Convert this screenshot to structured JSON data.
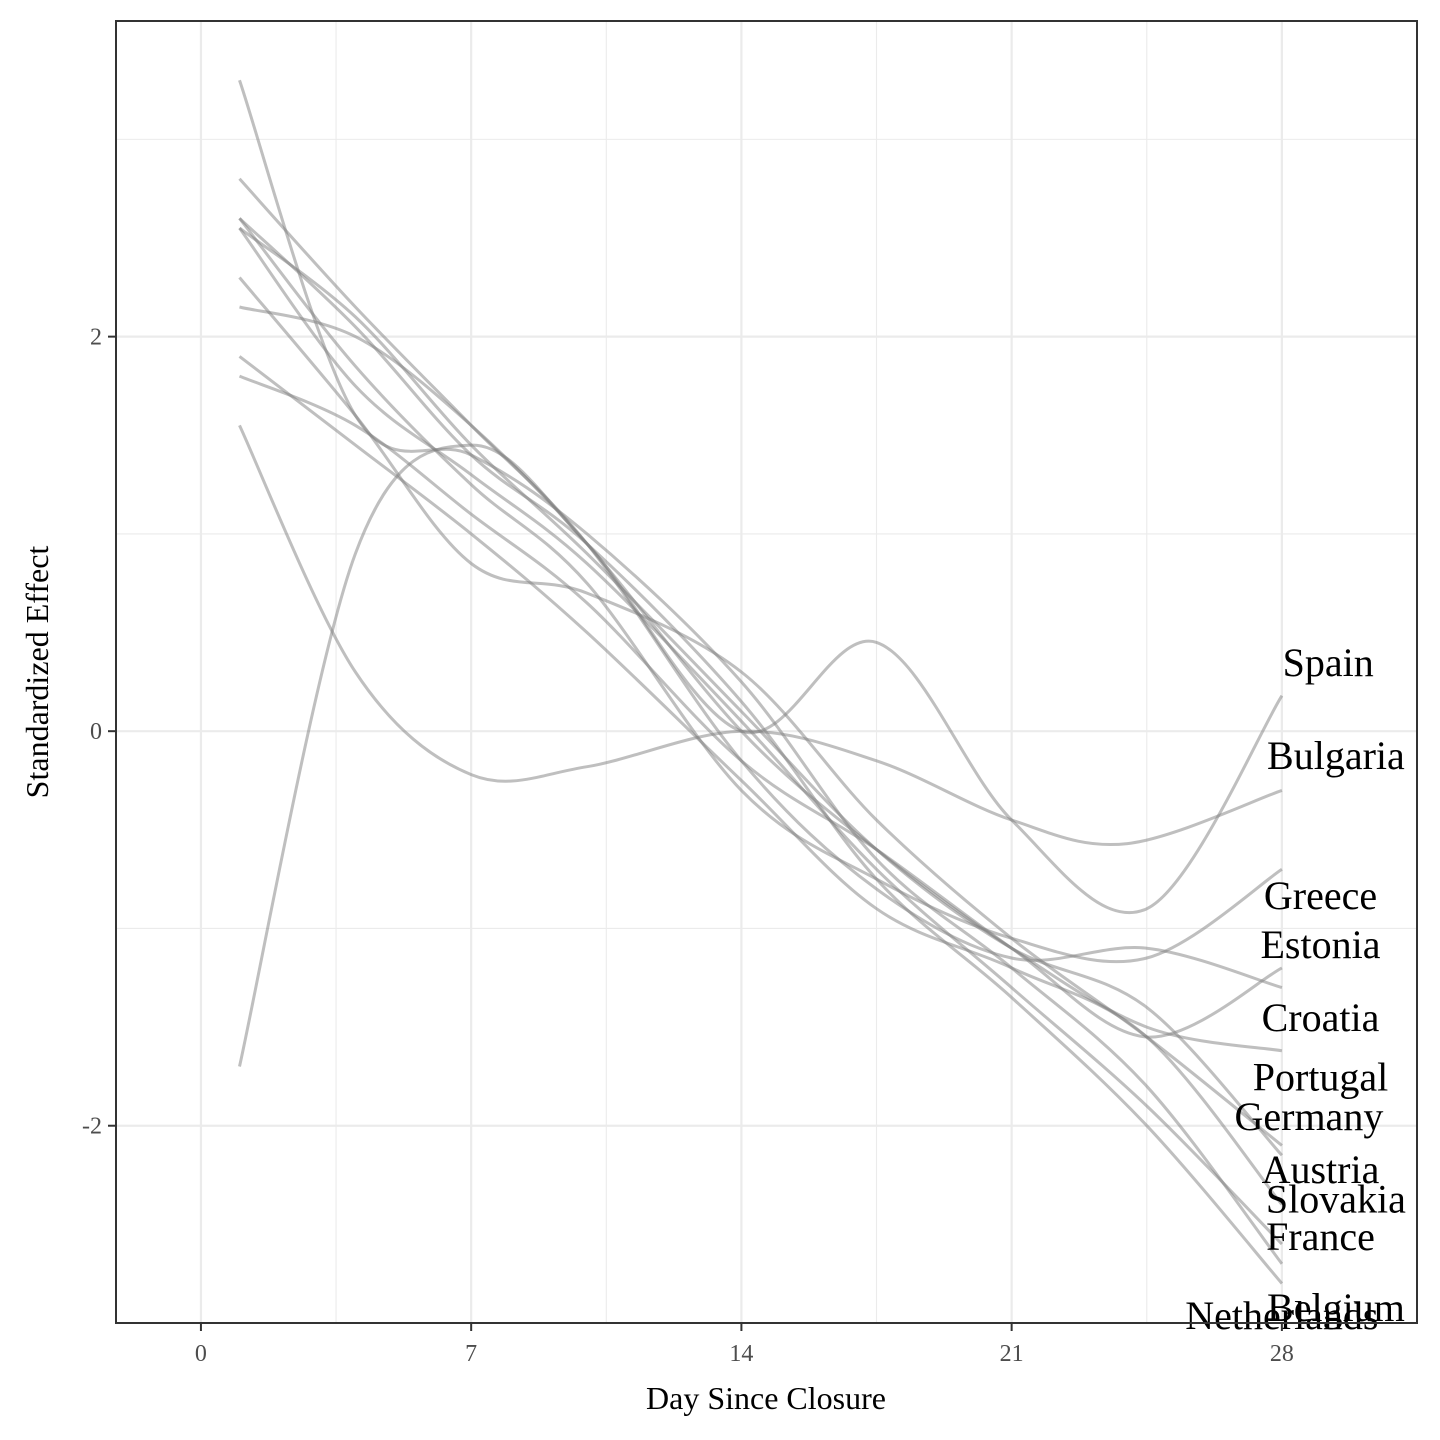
{
  "chart_data": {
    "type": "line",
    "xlabel": "Day Since Closure",
    "ylabel": "Standardized Effect",
    "xlim": [
      -2.2,
      31.5
    ],
    "ylim": [
      -3.0,
      3.6
    ],
    "x_ticks": [
      0,
      7,
      14,
      21,
      28
    ],
    "x_tick_labels": [
      "0",
      "7",
      "14",
      "21",
      "28"
    ],
    "x_minor_ticks": [
      3.5,
      10.5,
      17.5,
      24.5,
      31.5
    ],
    "y_ticks": [
      -2,
      0,
      2
    ],
    "y_tick_labels": [
      "-2",
      "0",
      "2"
    ],
    "y_minor_ticks": [
      -3,
      -1,
      1,
      3
    ],
    "grid": true,
    "line_color": "#808080",
    "series": [
      {
        "name": "Spain",
        "label_pos": [
          29.2,
          0.35
        ],
        "x": [
          1,
          4,
          7,
          10,
          14,
          17.5,
          21,
          24.5,
          28
        ],
        "y": [
          -1.7,
          0.9,
          1.45,
          0.95,
          0.0,
          0.45,
          -0.45,
          -0.9,
          0.18
        ]
      },
      {
        "name": "Bulgaria",
        "label_pos": [
          29.4,
          -0.12
        ],
        "x": [
          1,
          4,
          7,
          10,
          14,
          17.5,
          21,
          24,
          28
        ],
        "y": [
          1.55,
          0.3,
          -0.22,
          -0.18,
          0.0,
          -0.15,
          -0.45,
          -0.57,
          -0.3
        ]
      },
      {
        "name": "Greece",
        "label_pos": [
          29.0,
          -0.83
        ],
        "x": [
          1,
          4,
          7,
          10,
          14,
          17.5,
          21,
          24.5,
          28
        ],
        "y": [
          2.6,
          1.85,
          1.25,
          0.75,
          -0.3,
          -0.75,
          -1.05,
          -1.15,
          -0.7
        ]
      },
      {
        "name": "Estonia",
        "label_pos": [
          29.0,
          -1.08
        ],
        "x": [
          1,
          4,
          7,
          10,
          14,
          17.5,
          21,
          24.5,
          28
        ],
        "y": [
          2.8,
          2.15,
          1.55,
          0.95,
          -0.15,
          -0.8,
          -1.15,
          -1.1,
          -1.3
        ]
      },
      {
        "name": "Croatia",
        "label_pos": [
          29.0,
          -1.45
        ],
        "x": [
          1,
          4,
          7,
          10,
          14,
          17.5,
          21,
          24.5,
          28
        ],
        "y": [
          2.15,
          2.0,
          1.55,
          0.95,
          0.0,
          -0.6,
          -1.1,
          -1.5,
          -1.62
        ]
      },
      {
        "name": "Portugal",
        "label_pos": [
          29.0,
          -1.75
        ],
        "x": [
          1,
          4,
          7,
          10,
          14,
          17.5,
          21,
          24.5,
          28
        ],
        "y": [
          1.8,
          1.55,
          1.1,
          0.65,
          -0.15,
          -0.6,
          -1.1,
          -1.55,
          -1.2
        ]
      },
      {
        "name": "Germany",
        "label_pos": [
          28.7,
          -1.95
        ],
        "x": [
          1,
          4,
          7,
          10,
          14,
          17.5,
          21,
          24.5,
          28
        ],
        "y": [
          2.3,
          1.6,
          0.85,
          0.7,
          0.3,
          -0.45,
          -1.05,
          -1.55,
          -2.1
        ]
      },
      {
        "name": "Austria",
        "label_pos": [
          29.0,
          -2.22
        ],
        "x": [
          1,
          4,
          7,
          10,
          14,
          17.5,
          21,
          24.5,
          28
        ],
        "y": [
          2.55,
          2.1,
          1.45,
          0.9,
          0.1,
          -0.6,
          -1.1,
          -1.4,
          -2.15
        ]
      },
      {
        "name": "Slovakia",
        "label_pos": [
          29.4,
          -2.37
        ],
        "x": [
          1,
          4,
          7,
          10,
          14,
          17.5,
          21,
          24.5,
          28
        ],
        "y": [
          1.9,
          1.45,
          1.0,
          0.5,
          -0.25,
          -0.9,
          -1.2,
          -1.55,
          -2.4
        ]
      },
      {
        "name": "France",
        "label_pos": [
          29.0,
          -2.56
        ],
        "x": [
          1,
          4,
          7,
          10,
          14,
          17.5,
          21,
          24.5,
          28
        ],
        "y": [
          2.55,
          1.75,
          1.3,
          0.85,
          0.05,
          -0.7,
          -1.3,
          -1.9,
          -2.6
        ]
      },
      {
        "name": "Belgium",
        "label_pos": [
          29.4,
          -2.92
        ],
        "x": [
          1,
          4,
          7,
          10,
          14,
          17.5,
          21,
          24.5,
          28
        ],
        "y": [
          2.6,
          2.05,
          1.4,
          0.95,
          0.15,
          -0.75,
          -1.35,
          -2.0,
          -2.8
        ]
      },
      {
        "name": "Netherlands",
        "label_pos": [
          28.0,
          -2.96
        ],
        "x": [
          1,
          4,
          7,
          10,
          14,
          17.5,
          21,
          24.5,
          28
        ],
        "y": [
          3.3,
          1.6,
          1.4,
          1.0,
          0.25,
          -0.65,
          -1.2,
          -1.8,
          -2.7
        ]
      }
    ]
  }
}
